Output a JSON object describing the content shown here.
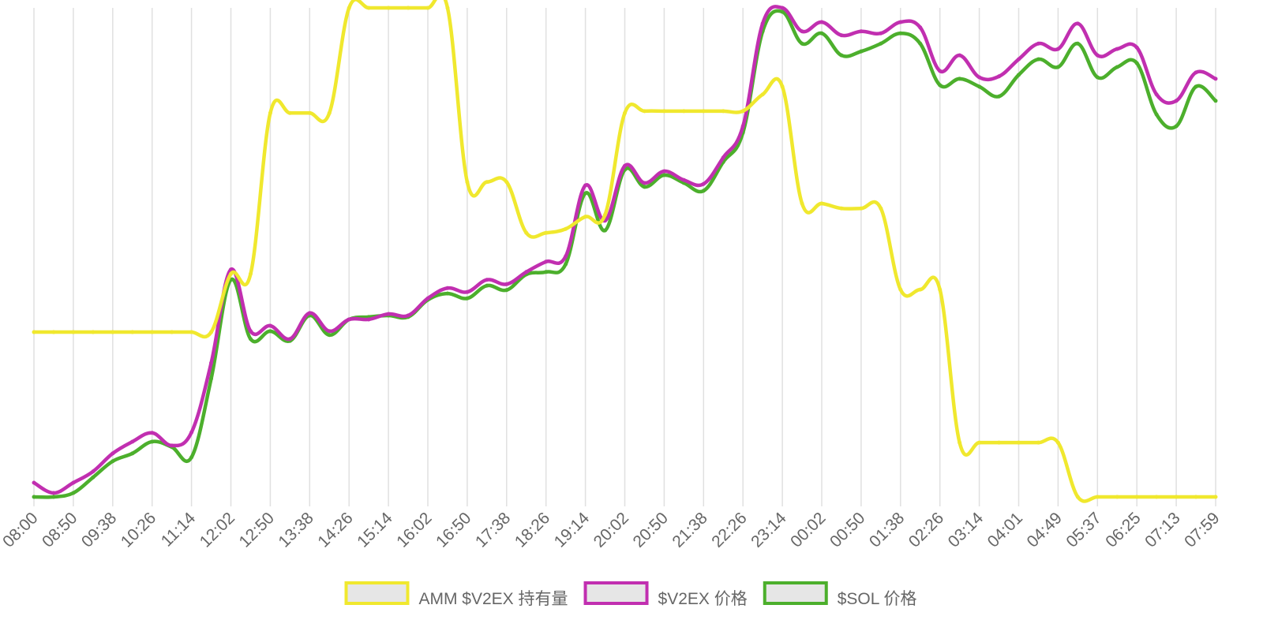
{
  "chart_data": {
    "type": "line",
    "categories": [
      "08:00",
      null,
      "08:50",
      null,
      "09:38",
      null,
      "10:26",
      null,
      "11:14",
      null,
      "12:02",
      null,
      "12:50",
      null,
      "13:38",
      null,
      "14:26",
      null,
      "15:14",
      null,
      "16:02",
      null,
      "16:50",
      null,
      "17:38",
      null,
      "18:26",
      null,
      "19:14",
      null,
      "20:02",
      null,
      "20:50",
      null,
      "21:38",
      null,
      "22:26",
      null,
      "23:14",
      null,
      "00:02",
      null,
      "00:50",
      null,
      "01:38",
      null,
      "02:26",
      null,
      "03:14",
      null,
      "04:01",
      null,
      "04:49",
      null,
      "05:37",
      null,
      "06:25",
      null,
      "07:13",
      null,
      "07:59"
    ],
    "ylim": [
      0,
      100
    ],
    "grid": true,
    "legend": "bottom",
    "series": [
      {
        "name": "AMM $V2EX 持有量",
        "color": "#f0e82e",
        "values": [
          33.7,
          33.7,
          33.7,
          33.7,
          33.7,
          33.7,
          33.7,
          33.7,
          33.7,
          33.7,
          45.6,
          45.6,
          78.5,
          78.5,
          78.5,
          78.5,
          100,
          100,
          100,
          100,
          100,
          100,
          64.4,
          64.4,
          64.4,
          54,
          54,
          54.8,
          57.3,
          57.7,
          78.5,
          78.9,
          78.9,
          78.9,
          78.9,
          78.9,
          78.9,
          82.3,
          83.9,
          60,
          60,
          59,
          59,
          59,
          42.4,
          42.4,
          42.4,
          11.1,
          11.1,
          11.1,
          11.1,
          11.1,
          11.1,
          0,
          0,
          0,
          0,
          0,
          0,
          0,
          0
        ]
      },
      {
        "name": "$V2EX 价格",
        "color": "#c12fb0",
        "values": [
          2.9,
          0.8,
          2.9,
          5.2,
          8.9,
          11.3,
          13.1,
          10.5,
          13.2,
          27.4,
          46.5,
          33.9,
          35,
          32.3,
          37.6,
          33.9,
          36.3,
          36.3,
          37.4,
          37.1,
          40.6,
          42.7,
          41.9,
          44.4,
          43.5,
          46,
          48.1,
          49.2,
          63.7,
          56.5,
          67.7,
          64.2,
          66.6,
          64.8,
          64,
          69.4,
          75.8,
          96.8,
          100,
          95.2,
          97.1,
          94.4,
          95.2,
          94.8,
          97.1,
          96,
          87.1,
          90.3,
          85.8,
          86,
          89.5,
          92.7,
          91.6,
          96.8,
          90.3,
          91.6,
          91.9,
          82.3,
          81,
          86.8,
          85.5
        ]
      },
      {
        "name": "$SOL 价格",
        "color": "#4caf2c",
        "values": [
          0,
          0,
          0.8,
          4,
          7.3,
          8.9,
          11.3,
          10.2,
          8.1,
          24.2,
          44.4,
          32.3,
          33.9,
          31.9,
          37.1,
          33.1,
          36.3,
          36.8,
          37.1,
          36.8,
          40.3,
          41.6,
          40.6,
          43.2,
          42.3,
          45.5,
          46,
          47.6,
          62.1,
          54.5,
          66.9,
          63.4,
          65.8,
          64.2,
          62.6,
          68.5,
          74.5,
          95.2,
          99.2,
          92.7,
          94.8,
          90.3,
          91.1,
          92.7,
          94.8,
          92.7,
          84.2,
          85.5,
          83.9,
          81.9,
          86.3,
          89.5,
          87.9,
          92.7,
          85.8,
          87.9,
          88.7,
          78.2,
          75.8,
          83.9,
          81
        ]
      }
    ]
  }
}
